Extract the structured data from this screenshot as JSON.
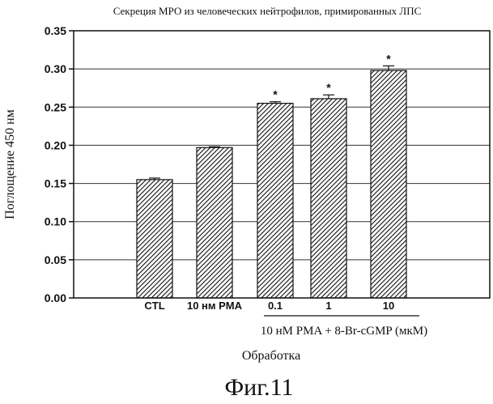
{
  "chart_data": {
    "type": "bar",
    "title": "Секреция МРО из человеческих нейтрофилов, примированных ЛПС",
    "ylabel": "Поглощение 450 нм",
    "xlabel": "Обработка",
    "ylim": [
      0,
      0.35
    ],
    "yticks": [
      "0.00",
      "0.05",
      "0.10",
      "0.15",
      "0.20",
      "0.25",
      "0.30",
      "0.35"
    ],
    "categories": [
      "CTL",
      "10 нм PMA",
      "0.1",
      "1",
      "10"
    ],
    "values": [
      0.155,
      0.197,
      0.255,
      0.261,
      0.298
    ],
    "errors": [
      0.002,
      0.001,
      0.002,
      0.005,
      0.006
    ],
    "significance": [
      "",
      "",
      "*",
      "*",
      "*"
    ],
    "group_label": "10 нМ PMA + 8-Br-cGMP (мкМ)",
    "grid": true
  },
  "caption": "Фиг.11"
}
